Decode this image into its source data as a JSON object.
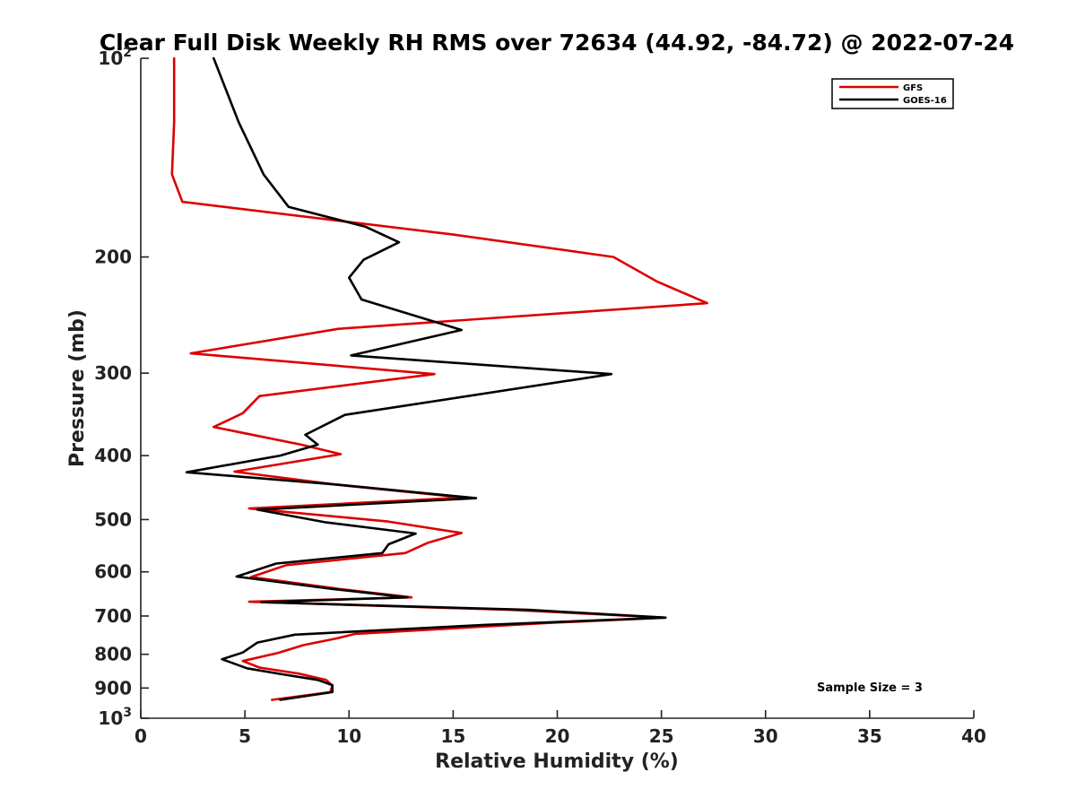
{
  "chart_data": {
    "type": "line",
    "title": "Clear Full Disk Weekly RH RMS over 72634 (44.92, -84.72) @ 2022-07-24",
    "xlabel": "Relative Humidity (%)",
    "ylabel": "Pressure (mb)",
    "xlim": [
      0,
      40
    ],
    "ylim": [
      100,
      1000
    ],
    "yscale": "log",
    "y_reversed": true,
    "x_ticks": [
      "0",
      "5",
      "10",
      "15",
      "20",
      "25",
      "30",
      "35",
      "40"
    ],
    "y_ticks": [
      {
        "value": 100,
        "label": "10",
        "sup": "2"
      },
      {
        "value": 200,
        "label": "200",
        "sup": ""
      },
      {
        "value": 300,
        "label": "300",
        "sup": ""
      },
      {
        "value": 400,
        "label": "400",
        "sup": ""
      },
      {
        "value": 500,
        "label": "500",
        "sup": ""
      },
      {
        "value": 600,
        "label": "600",
        "sup": ""
      },
      {
        "value": 700,
        "label": "700",
        "sup": ""
      },
      {
        "value": 800,
        "label": "800",
        "sup": ""
      },
      {
        "value": 900,
        "label": "900",
        "sup": ""
      },
      {
        "value": 1000,
        "label": "10",
        "sup": "3"
      }
    ],
    "legend_position": "top-right",
    "grid": false,
    "annotation": "Sample Size = 3",
    "series": [
      {
        "name": "GFS",
        "color": "#dd0000",
        "points": [
          [
            1.6,
            100
          ],
          [
            1.6,
            125
          ],
          [
            1.5,
            150
          ],
          [
            2.0,
            165
          ],
          [
            15.0,
            185
          ],
          [
            22.7,
            200
          ],
          [
            24.8,
            218
          ],
          [
            27.2,
            235
          ],
          [
            9.5,
            257
          ],
          [
            2.4,
            280
          ],
          [
            14.1,
            301
          ],
          [
            5.7,
            325
          ],
          [
            4.9,
            345
          ],
          [
            3.5,
            362
          ],
          [
            7.7,
            385
          ],
          [
            9.6,
            398
          ],
          [
            4.5,
            423
          ],
          [
            9.5,
            443
          ],
          [
            15.5,
            463
          ],
          [
            5.2,
            481
          ],
          [
            11.8,
            503
          ],
          [
            15.4,
            524
          ],
          [
            13.8,
            542
          ],
          [
            12.7,
            562
          ],
          [
            7.0,
            586
          ],
          [
            5.3,
            611
          ],
          [
            9.7,
            638
          ],
          [
            13.0,
            656
          ],
          [
            5.2,
            666
          ],
          [
            17.7,
            685
          ],
          [
            25.2,
            704
          ],
          [
            19.6,
            717
          ],
          [
            10.3,
            745
          ],
          [
            9.4,
            757
          ],
          [
            7.8,
            775
          ],
          [
            6.6,
            796
          ],
          [
            4.9,
            819
          ],
          [
            5.7,
            838
          ],
          [
            7.6,
            856
          ],
          [
            8.9,
            875
          ],
          [
            9.2,
            892
          ],
          [
            9.1,
            913
          ],
          [
            6.3,
            938
          ]
        ]
      },
      {
        "name": "GOES-16",
        "color": "#000000",
        "points": [
          [
            3.5,
            100
          ],
          [
            4.7,
            125
          ],
          [
            5.9,
            150
          ],
          [
            7.1,
            168
          ],
          [
            10.8,
            180
          ],
          [
            12.4,
            190
          ],
          [
            10.7,
            202
          ],
          [
            10.0,
            215
          ],
          [
            10.6,
            232
          ],
          [
            15.4,
            258
          ],
          [
            10.1,
            282
          ],
          [
            22.6,
            301
          ],
          [
            9.8,
            347
          ],
          [
            7.9,
            372
          ],
          [
            8.5,
            385
          ],
          [
            6.7,
            400
          ],
          [
            2.2,
            424
          ],
          [
            9.6,
            443
          ],
          [
            16.1,
            464
          ],
          [
            5.6,
            483
          ],
          [
            8.9,
            505
          ],
          [
            13.2,
            525
          ],
          [
            11.9,
            545
          ],
          [
            11.6,
            562
          ],
          [
            6.5,
            583
          ],
          [
            4.6,
            610
          ],
          [
            9.2,
            637
          ],
          [
            12.8,
            656
          ],
          [
            5.8,
            667
          ],
          [
            18.6,
            685
          ],
          [
            25.2,
            704
          ],
          [
            16.5,
            722
          ],
          [
            7.4,
            747
          ],
          [
            5.6,
            768
          ],
          [
            4.9,
            795
          ],
          [
            3.9,
            814
          ],
          [
            5.1,
            840
          ],
          [
            6.8,
            858
          ],
          [
            8.5,
            875
          ],
          [
            9.2,
            891
          ],
          [
            9.2,
            913
          ],
          [
            6.7,
            938
          ]
        ]
      }
    ]
  }
}
